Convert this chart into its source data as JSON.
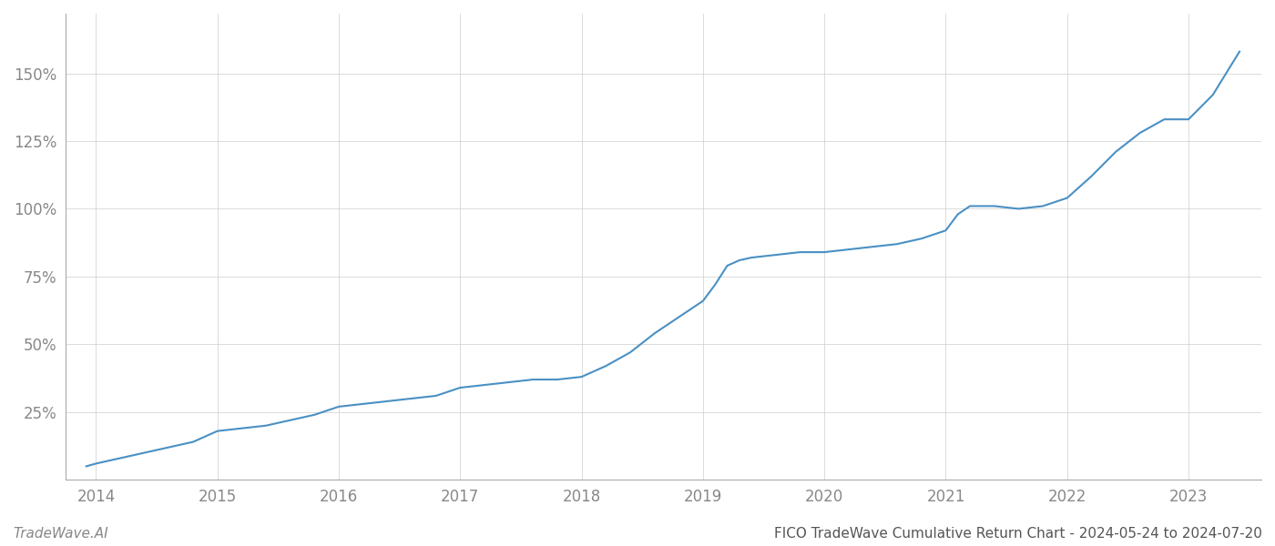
{
  "title": "FICO TradeWave Cumulative Return Chart - 2024-05-24 to 2024-07-20",
  "watermark": "TradeWave.AI",
  "line_color": "#4a90c4",
  "line_width": 1.5,
  "background_color": "#ffffff",
  "grid_color": "#cccccc",
  "x_years": [
    2013.92,
    2014.0,
    2014.2,
    2014.4,
    2014.6,
    2014.8,
    2015.0,
    2015.2,
    2015.4,
    2015.6,
    2015.8,
    2016.0,
    2016.2,
    2016.4,
    2016.6,
    2016.8,
    2017.0,
    2017.2,
    2017.4,
    2017.6,
    2017.8,
    2018.0,
    2018.2,
    2018.4,
    2018.6,
    2018.8,
    2019.0,
    2019.1,
    2019.2,
    2019.3,
    2019.4,
    2019.6,
    2019.8,
    2020.0,
    2020.2,
    2020.4,
    2020.6,
    2020.8,
    2021.0,
    2021.1,
    2021.2,
    2021.4,
    2021.6,
    2021.8,
    2022.0,
    2022.2,
    2022.4,
    2022.6,
    2022.8,
    2023.0,
    2023.2,
    2023.42
  ],
  "y_values": [
    5,
    6,
    8,
    10,
    12,
    14,
    18,
    19,
    20,
    22,
    24,
    27,
    28,
    29,
    30,
    31,
    34,
    35,
    36,
    37,
    37,
    38,
    42,
    47,
    54,
    60,
    66,
    72,
    79,
    81,
    82,
    83,
    84,
    84,
    85,
    86,
    87,
    89,
    92,
    98,
    101,
    101,
    100,
    101,
    104,
    112,
    121,
    128,
    133,
    133,
    142,
    158
  ],
  "xlim": [
    2013.75,
    2023.6
  ],
  "ylim": [
    0,
    172
  ],
  "yticks": [
    25,
    50,
    75,
    100,
    125,
    150
  ],
  "xticks": [
    2014,
    2015,
    2016,
    2017,
    2018,
    2019,
    2020,
    2021,
    2022,
    2023
  ],
  "tick_label_color": "#888888",
  "tick_fontsize": 12,
  "title_fontsize": 11,
  "watermark_fontsize": 11,
  "spine_color": "#aaaaaa"
}
